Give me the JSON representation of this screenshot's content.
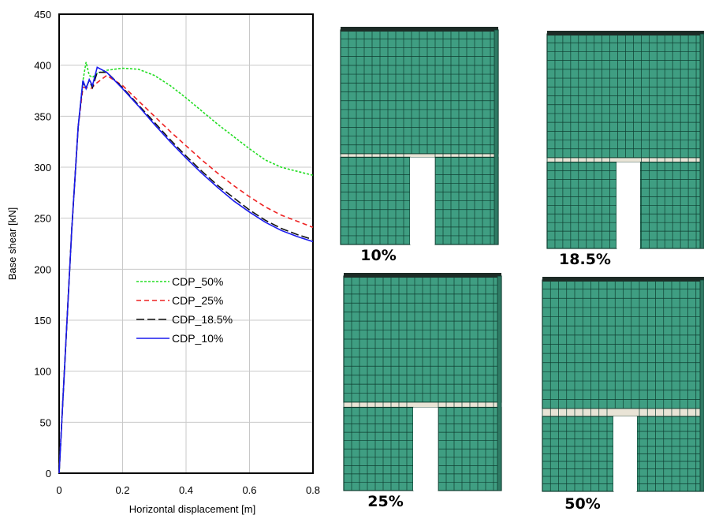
{
  "chart_data": {
    "type": "line",
    "xlabel": "Horizontal displacement [m]",
    "ylabel": "Base shear [kN]",
    "xlim": [
      0,
      0.8
    ],
    "ylim": [
      0,
      450
    ],
    "xticks": [
      0,
      0.2,
      0.4,
      0.6,
      0.8
    ],
    "xtick_labels": [
      "0",
      "0.2",
      "0.4",
      "0.6",
      "0.8"
    ],
    "yticks": [
      0,
      50,
      100,
      150,
      200,
      250,
      300,
      350,
      400,
      450
    ],
    "ytick_labels": [
      "0",
      "50",
      "100",
      "150",
      "200",
      "250",
      "300",
      "350",
      "400",
      "450"
    ],
    "grid": true,
    "legend_position": "center-left",
    "series": [
      {
        "name": "CDP_50%",
        "color": "#22dd22",
        "dash": "dotted",
        "x": [
          0,
          0.02,
          0.04,
          0.06,
          0.075,
          0.085,
          0.095,
          0.105,
          0.12,
          0.15,
          0.2,
          0.25,
          0.3,
          0.35,
          0.4,
          0.45,
          0.5,
          0.55,
          0.6,
          0.65,
          0.7,
          0.75,
          0.8
        ],
        "y": [
          0,
          120,
          240,
          340,
          385,
          403,
          390,
          388,
          392,
          395,
          397,
          396,
          390,
          380,
          368,
          355,
          342,
          330,
          318,
          307,
          300,
          296,
          292
        ]
      },
      {
        "name": "CDP_25%",
        "color": "#ee2222",
        "dash": "dashed",
        "x": [
          0,
          0.02,
          0.04,
          0.06,
          0.075,
          0.085,
          0.1,
          0.12,
          0.15,
          0.2,
          0.25,
          0.3,
          0.35,
          0.4,
          0.45,
          0.5,
          0.55,
          0.6,
          0.65,
          0.7,
          0.75,
          0.8
        ],
        "y": [
          0,
          120,
          240,
          340,
          378,
          378,
          377,
          383,
          390,
          380,
          365,
          350,
          335,
          321,
          307,
          294,
          282,
          271,
          261,
          253,
          247,
          241
        ]
      },
      {
        "name": "CDP_18.5%",
        "color": "#111111",
        "dash": "longdash",
        "x": [
          0,
          0.02,
          0.04,
          0.06,
          0.075,
          0.085,
          0.095,
          0.105,
          0.12,
          0.15,
          0.2,
          0.25,
          0.3,
          0.35,
          0.4,
          0.45,
          0.5,
          0.55,
          0.6,
          0.65,
          0.7,
          0.75,
          0.8
        ],
        "y": [
          0,
          120,
          240,
          340,
          383,
          378,
          385,
          378,
          393,
          393,
          378,
          361,
          344,
          327,
          311,
          296,
          282,
          270,
          258,
          248,
          240,
          234,
          229
        ]
      },
      {
        "name": "CDP_10%",
        "color": "#1a1aee",
        "dash": "solid",
        "x": [
          0,
          0.02,
          0.04,
          0.06,
          0.075,
          0.085,
          0.095,
          0.105,
          0.12,
          0.15,
          0.2,
          0.25,
          0.3,
          0.35,
          0.4,
          0.45,
          0.5,
          0.55,
          0.6,
          0.65,
          0.7,
          0.75,
          0.8
        ],
        "y": [
          0,
          120,
          240,
          340,
          385,
          377,
          386,
          380,
          398,
          393,
          377,
          360,
          342,
          325,
          309,
          294,
          280,
          267,
          256,
          246,
          238,
          232,
          227
        ]
      }
    ]
  },
  "mesh_panels": [
    {
      "label": "10%",
      "band_ratio": 0.1
    },
    {
      "label": "18.5%",
      "band_ratio": 0.185
    },
    {
      "label": "25%",
      "band_ratio": 0.25
    },
    {
      "label": "50%",
      "band_ratio": 0.5
    }
  ],
  "colors": {
    "mesh_fill": "#3f9e82",
    "mesh_line": "#0f3d30",
    "band_fill": "#e9e4d6"
  }
}
